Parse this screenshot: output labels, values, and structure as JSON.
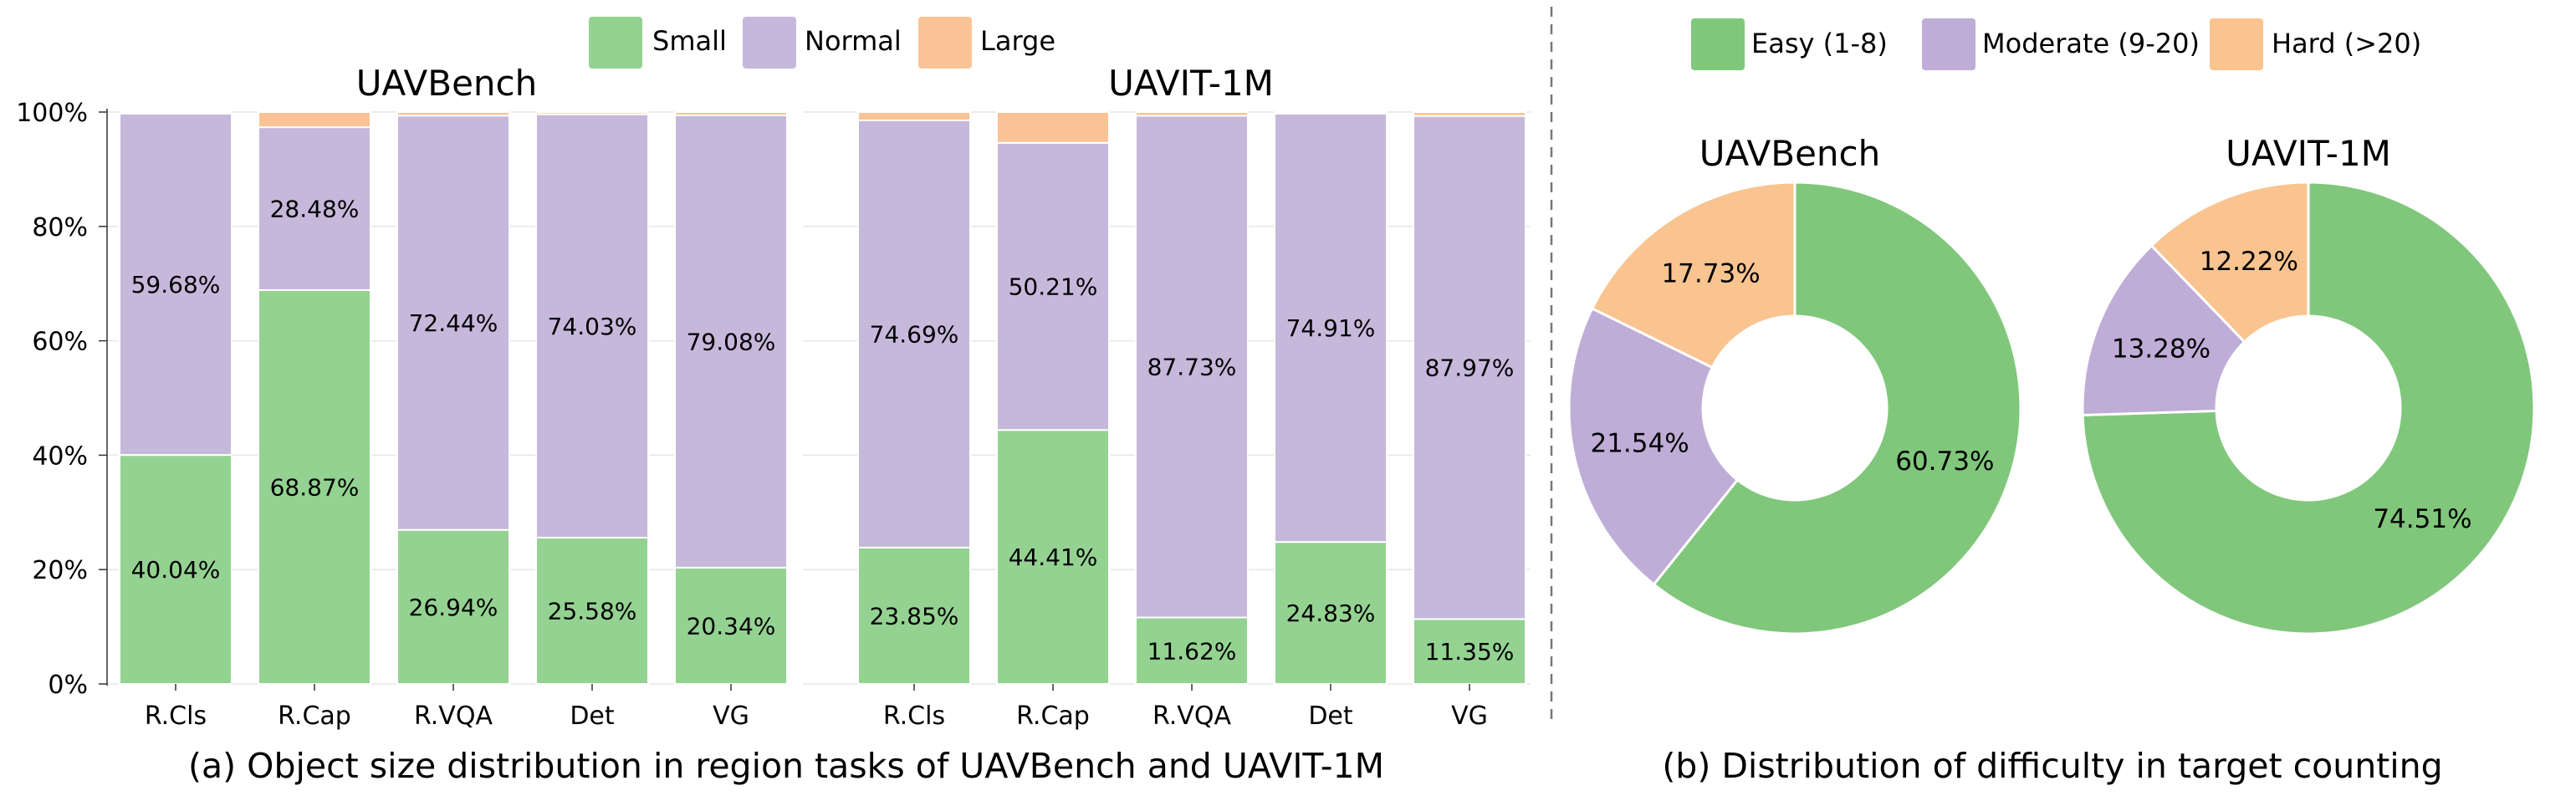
{
  "legend_a": [
    {
      "label": "Small",
      "color": "#94d292"
    },
    {
      "label": "Normal",
      "color": "#c6b8db"
    },
    {
      "label": "Large",
      "color": "#f9c396"
    }
  ],
  "legend_b": [
    {
      "label": "Easy (1-8)",
      "color": "#80c77c"
    },
    {
      "label": "Moderate (9-20)",
      "color": "#bfadd7"
    },
    {
      "label": "Hard (>20)",
      "color": "#f9c48f"
    }
  ],
  "captions": {
    "a": "(a) Object size distribution in region tasks of UAVBench and UAVIT-1M",
    "b": "(b) Distribution of difficulty in target counting"
  },
  "y_ticks": [
    "0%",
    "20%",
    "40%",
    "60%",
    "80%",
    "100%"
  ],
  "chart_data": [
    {
      "type": "bar",
      "stacked": true,
      "title": "UAVBench",
      "categories": [
        "R.Cls",
        "R.Cap",
        "R.VQA",
        "Det",
        "VG"
      ],
      "ylim": [
        0,
        100
      ],
      "series": [
        {
          "name": "Small",
          "values": [
            40.04,
            68.87,
            26.94,
            25.58,
            20.34
          ]
        },
        {
          "name": "Normal",
          "values": [
            59.68,
            28.48,
            72.44,
            74.03,
            79.08
          ]
        },
        {
          "name": "Large",
          "values": [
            0.28,
            2.65,
            0.62,
            0.39,
            0.58
          ]
        }
      ],
      "labels": {
        "Small": [
          "40.04%",
          "68.87%",
          "26.94%",
          "25.58%",
          "20.34%"
        ],
        "Normal": [
          "59.68%",
          "28.48%",
          "72.44%",
          "74.03%",
          "79.08%"
        ]
      }
    },
    {
      "type": "bar",
      "stacked": true,
      "title": "UAVIT-1M",
      "categories": [
        "R.Cls",
        "R.Cap",
        "R.VQA",
        "Det",
        "VG"
      ],
      "ylim": [
        0,
        100
      ],
      "series": [
        {
          "name": "Small",
          "values": [
            23.85,
            44.41,
            11.62,
            24.83,
            11.35
          ]
        },
        {
          "name": "Normal",
          "values": [
            74.69,
            50.21,
            87.73,
            74.91,
            87.97
          ]
        },
        {
          "name": "Large",
          "values": [
            1.46,
            5.38,
            0.65,
            0.26,
            0.68
          ]
        }
      ],
      "labels": {
        "Small": [
          "23.85%",
          "44.41%",
          "11.62%",
          "24.83%",
          "11.35%"
        ],
        "Normal": [
          "74.69%",
          "50.21%",
          "87.73%",
          "74.91%",
          "87.97%"
        ]
      }
    },
    {
      "type": "pie",
      "donut": true,
      "title": "UAVBench",
      "slices": [
        {
          "name": "Easy (1-8)",
          "value": 60.73,
          "label": "60.73%"
        },
        {
          "name": "Moderate (9-20)",
          "value": 21.54,
          "label": "21.54%"
        },
        {
          "name": "Hard (>20)",
          "value": 17.73,
          "label": "17.73%"
        }
      ]
    },
    {
      "type": "pie",
      "donut": true,
      "title": "UAVIT-1M",
      "slices": [
        {
          "name": "Easy (1-8)",
          "value": 74.51,
          "label": "74.51%"
        },
        {
          "name": "Moderate (9-20)",
          "value": 13.28,
          "label": "13.28%"
        },
        {
          "name": "Hard (>20)",
          "value": 12.22,
          "label": "12.22%"
        }
      ]
    }
  ]
}
